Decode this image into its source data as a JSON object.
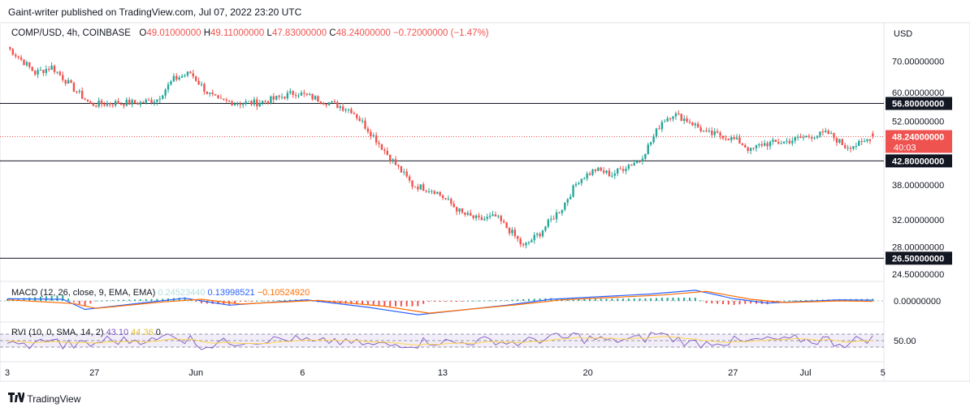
{
  "header": {
    "publisher": "Gaint-writer published on TradingView.com, Jul 07, 2022 23:20 UTC"
  },
  "legend": {
    "symbol": "COMP/USD, 4h, COINBASE",
    "open_label": "O",
    "open": "49.01000000",
    "high_label": "H",
    "high": "49.11000000",
    "low_label": "L",
    "low": "47.83000000",
    "close_label": "C",
    "close": "48.24000000",
    "change": "−0.72000000 (−1.47%)"
  },
  "price_axis": {
    "currency": "USD",
    "ticks": [
      "70.00000000",
      "60.00000000",
      "52.00000000",
      "38.00000000",
      "32.00000000",
      "28.00000000",
      "24.50000000"
    ],
    "current_price": "48.24000000",
    "countdown": "40:03",
    "level_labels": [
      "56.80000000",
      "42.80000000",
      "26.50000000"
    ]
  },
  "macd": {
    "label": "MACD (12, 26, close, 9, EMA, EMA)",
    "histogram": "0.24523440",
    "macd": "0.13998521",
    "signal": "−0.10524920",
    "axis_tick": "0.00000000"
  },
  "rvi": {
    "label": "RVI (10, 0, SMA, 14, 2)",
    "value": "43.10",
    "signal": "44.36",
    "axis_tick": "50.00"
  },
  "time_axis": {
    "labels": [
      "3",
      "27",
      "Jun",
      "6",
      "13",
      "20",
      "27",
      "Jul",
      "5"
    ]
  },
  "footer": {
    "brand": "TradingView"
  },
  "colors": {
    "up": "#26a69a",
    "down": "#ef5350",
    "macd_line": "#2962ff",
    "signal_line": "#ff6d00",
    "rvi_line": "#7e57c2",
    "rvi_signal": "#ffd54f",
    "level": "#131722"
  },
  "chart_data": {
    "type": "candlestick",
    "symbol": "COMP/USD",
    "timeframe": "4h",
    "x_ticks": [
      "3",
      "27",
      "Jun",
      "6",
      "13",
      "20",
      "27",
      "Jul",
      "5"
    ],
    "y_scale": "log",
    "y_ticks": [
      70,
      60,
      52,
      38,
      32,
      28,
      24.5
    ],
    "horizontal_levels": [
      56.8,
      42.8,
      26.5
    ],
    "last": {
      "open": 49.01,
      "high": 49.11,
      "low": 47.83,
      "close": 48.24
    },
    "close_path": [
      [
        0,
        75
      ],
      [
        10,
        66
      ],
      [
        16,
        68
      ],
      [
        24,
        61
      ],
      [
        30,
        56.5
      ],
      [
        40,
        57
      ],
      [
        48,
        57
      ],
      [
        54,
        58
      ],
      [
        60,
        64
      ],
      [
        66,
        66
      ],
      [
        72,
        60
      ],
      [
        76,
        57.5
      ],
      [
        84,
        57
      ],
      [
        90,
        57
      ],
      [
        96,
        58
      ],
      [
        104,
        60
      ],
      [
        108,
        59
      ],
      [
        114,
        57.5
      ],
      [
        124,
        55
      ],
      [
        130,
        50
      ],
      [
        136,
        45
      ],
      [
        140,
        42
      ],
      [
        146,
        38
      ],
      [
        154,
        37
      ],
      [
        164,
        33
      ],
      [
        170,
        32
      ],
      [
        176,
        32.5
      ],
      [
        182,
        30
      ],
      [
        186,
        28
      ],
      [
        192,
        30
      ],
      [
        200,
        34
      ],
      [
        206,
        39
      ],
      [
        212,
        41
      ],
      [
        218,
        40
      ],
      [
        224,
        42
      ],
      [
        228,
        43
      ],
      [
        232,
        47
      ],
      [
        236,
        52
      ],
      [
        240,
        54
      ],
      [
        246,
        52
      ],
      [
        252,
        49
      ],
      [
        258,
        48.5
      ],
      [
        264,
        47
      ],
      [
        268,
        45
      ],
      [
        272,
        46.5
      ],
      [
        280,
        47
      ],
      [
        290,
        48.5
      ],
      [
        296,
        49
      ],
      [
        302,
        46
      ],
      [
        308,
        46.5
      ],
      [
        312,
        48.5
      ]
    ],
    "macd_series": {
      "macd": [
        [
          0,
          0.4
        ],
        [
          20,
          0.3
        ],
        [
          28,
          -1.6
        ],
        [
          50,
          -0.3
        ],
        [
          64,
          0.5
        ],
        [
          80,
          -0.8
        ],
        [
          108,
          0.2
        ],
        [
          130,
          -1.2
        ],
        [
          148,
          -2.6
        ],
        [
          180,
          -0.8
        ],
        [
          196,
          0.3
        ],
        [
          232,
          1.3
        ],
        [
          248,
          2.0
        ],
        [
          262,
          0.4
        ],
        [
          274,
          -0.4
        ],
        [
          300,
          0.2
        ],
        [
          312,
          0.14
        ]
      ],
      "signal": [
        [
          0,
          0.2
        ],
        [
          24,
          -0.5
        ],
        [
          32,
          -1.4
        ],
        [
          56,
          -0.2
        ],
        [
          70,
          0.3
        ],
        [
          84,
          -0.6
        ],
        [
          112,
          0.1
        ],
        [
          136,
          -1.0
        ],
        [
          152,
          -2.3
        ],
        [
          184,
          -0.7
        ],
        [
          200,
          0.2
        ],
        [
          236,
          1.1
        ],
        [
          252,
          1.8
        ],
        [
          268,
          0.3
        ],
        [
          280,
          -0.3
        ],
        [
          300,
          0.0
        ],
        [
          312,
          -0.1
        ]
      ]
    },
    "rvi_range": [
      0,
      100
    ],
    "rvi_band": [
      30,
      70
    ]
  }
}
